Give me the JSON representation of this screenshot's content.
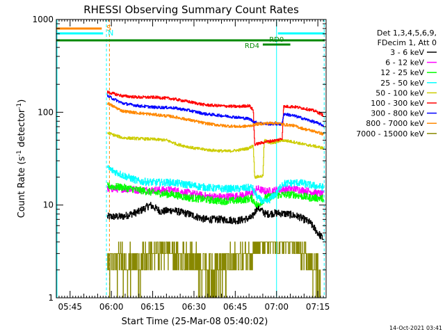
{
  "chart_data": {
    "type": "line",
    "title": "RHESSI Observing Summary Count Rates",
    "xlabel": "Start Time (25-Mar-08 05:40:02)",
    "ylabel_main": "Count Rate (s",
    "ylabel_sup1": "-1",
    "ylabel_mid": " detector",
    "ylabel_sup2": "-1",
    "ylabel_end": ")",
    "yscale": "log",
    "ylim": [
      1,
      1000
    ],
    "xlim_minutes": [
      0,
      98
    ],
    "x_ticks": [
      {
        "t": 5,
        "label": "05:45"
      },
      {
        "t": 20,
        "label": "06:00"
      },
      {
        "t": 35,
        "label": "06:15"
      },
      {
        "t": 50,
        "label": "06:30"
      },
      {
        "t": 65,
        "label": "06:45"
      },
      {
        "t": 80,
        "label": "07:00"
      },
      {
        "t": 95,
        "label": "07:15"
      }
    ],
    "y_ticks": [
      {
        "v": 1,
        "label": "1"
      },
      {
        "v": 10,
        "label": "10"
      },
      {
        "v": 100,
        "label": "100"
      },
      {
        "v": 1000,
        "label": "1000"
      }
    ],
    "legend_header": [
      "Det 1,3,4,5,6,9,",
      "FDecim 1, Att 0"
    ],
    "series": [
      {
        "name": "3 - 6 keV",
        "color": "#000000",
        "points": [
          [
            18.5,
            7.5
          ],
          [
            24,
            7.5
          ],
          [
            30,
            8.5
          ],
          [
            34,
            10
          ],
          [
            38,
            8.5
          ],
          [
            42,
            8.8
          ],
          [
            48,
            8
          ],
          [
            54,
            7
          ],
          [
            60,
            7
          ],
          [
            66,
            6.8
          ],
          [
            71,
            7.3
          ],
          [
            73,
            9.5
          ],
          [
            76,
            8
          ],
          [
            80,
            8.2
          ],
          [
            84,
            8
          ],
          [
            88,
            7.5
          ],
          [
            92,
            6.5
          ],
          [
            95,
            5
          ],
          [
            97,
            4.3
          ]
        ]
      },
      {
        "name": "6 - 12 keV",
        "color": "#ff00ff",
        "points": [
          [
            18.5,
            15
          ],
          [
            24,
            15
          ],
          [
            30,
            14.5
          ],
          [
            36,
            14.5
          ],
          [
            42,
            14.5
          ],
          [
            48,
            13.5
          ],
          [
            54,
            12.5
          ],
          [
            60,
            12.2
          ],
          [
            66,
            12.5
          ],
          [
            71,
            13.5
          ],
          [
            73,
            15
          ],
          [
            76,
            14
          ],
          [
            80,
            14.5
          ],
          [
            86,
            15
          ],
          [
            92,
            14
          ],
          [
            97,
            13
          ]
        ]
      },
      {
        "name": "12 - 25 keV",
        "color": "#00ff00",
        "points": [
          [
            18.5,
            16
          ],
          [
            24,
            15.5
          ],
          [
            30,
            14.5
          ],
          [
            36,
            13.5
          ],
          [
            42,
            13
          ],
          [
            48,
            12
          ],
          [
            54,
            11.5
          ],
          [
            60,
            11
          ],
          [
            66,
            11.2
          ],
          [
            71,
            11.8
          ],
          [
            73,
            9.8
          ],
          [
            76,
            12
          ],
          [
            80,
            12.8
          ],
          [
            86,
            13
          ],
          [
            92,
            12
          ],
          [
            97,
            11.8
          ]
        ]
      },
      {
        "name": "25 - 50 keV",
        "color": "#00ffff",
        "points": [
          [
            18.5,
            25
          ],
          [
            24,
            21
          ],
          [
            30,
            18
          ],
          [
            36,
            17.5
          ],
          [
            42,
            17.5
          ],
          [
            48,
            16.5
          ],
          [
            54,
            15.5
          ],
          [
            60,
            15
          ],
          [
            66,
            15
          ],
          [
            71,
            15.5
          ],
          [
            73,
            12
          ],
          [
            76,
            10.5
          ],
          [
            80,
            13.5
          ],
          [
            82,
            17
          ],
          [
            88,
            17.5
          ],
          [
            92,
            16.5
          ],
          [
            97,
            15.5
          ]
        ]
      },
      {
        "name": "50 - 100 keV",
        "color": "#cccc00",
        "points": [
          [
            18.5,
            60
          ],
          [
            24,
            53
          ],
          [
            30,
            52
          ],
          [
            36,
            51
          ],
          [
            40,
            50
          ],
          [
            44,
            45
          ],
          [
            50,
            41
          ],
          [
            56,
            39
          ],
          [
            62,
            38
          ],
          [
            66,
            39
          ],
          [
            70,
            41
          ],
          [
            71.5,
            44
          ],
          [
            72,
            20
          ],
          [
            75,
            20.5
          ],
          [
            75.5,
            50
          ],
          [
            78,
            46
          ],
          [
            82,
            50
          ],
          [
            86,
            48
          ],
          [
            90,
            45
          ],
          [
            94,
            43
          ],
          [
            97,
            41
          ]
        ]
      },
      {
        "name": "100 - 300 keV",
        "color": "#ff0000",
        "points": [
          [
            18.5,
            165
          ],
          [
            24,
            150
          ],
          [
            30,
            145
          ],
          [
            36,
            145
          ],
          [
            42,
            140
          ],
          [
            48,
            130
          ],
          [
            54,
            120
          ],
          [
            60,
            117
          ],
          [
            66,
            115
          ],
          [
            70,
            118
          ],
          [
            71.5,
            105
          ],
          [
            72,
            45
          ],
          [
            76,
            48
          ],
          [
            80,
            50
          ],
          [
            82,
            52
          ],
          [
            82.5,
            115
          ],
          [
            86,
            115
          ],
          [
            90,
            110
          ],
          [
            94,
            103
          ],
          [
            97,
            93
          ]
        ]
      },
      {
        "name": "300 - 800 keV",
        "color": "#0000ff",
        "points": [
          [
            18.5,
            150
          ],
          [
            24,
            125
          ],
          [
            30,
            117
          ],
          [
            36,
            113
          ],
          [
            42,
            112
          ],
          [
            48,
            105
          ],
          [
            54,
            96
          ],
          [
            60,
            92
          ],
          [
            66,
            88
          ],
          [
            70,
            85
          ],
          [
            72,
            78
          ],
          [
            76,
            75
          ],
          [
            80,
            75
          ],
          [
            82,
            74
          ],
          [
            82.5,
            96
          ],
          [
            86,
            92
          ],
          [
            90,
            85
          ],
          [
            94,
            78
          ],
          [
            97,
            72
          ]
        ]
      },
      {
        "name": "800 - 7000 keV",
        "color": "#ff8800",
        "points": [
          [
            18.5,
            125
          ],
          [
            24,
            103
          ],
          [
            30,
            98
          ],
          [
            36,
            94
          ],
          [
            42,
            90
          ],
          [
            48,
            83
          ],
          [
            54,
            76
          ],
          [
            60,
            72
          ],
          [
            66,
            70
          ],
          [
            70,
            71
          ],
          [
            72,
            74
          ],
          [
            76,
            76
          ],
          [
            80,
            77
          ],
          [
            82,
            74
          ],
          [
            86,
            72
          ],
          [
            90,
            66
          ],
          [
            94,
            62
          ],
          [
            97,
            58
          ]
        ]
      },
      {
        "name": "7000 - 15000 keV",
        "color": "#888800",
        "points": [
          [
            18.5,
            2.3
          ],
          [
            24,
            2.6
          ],
          [
            30,
            2.3
          ],
          [
            36,
            3.2
          ],
          [
            40,
            3.3
          ],
          [
            44,
            2.8
          ],
          [
            50,
            2.6
          ],
          [
            56,
            2.2
          ],
          [
            60,
            2.2
          ],
          [
            64,
            2.5
          ],
          [
            68,
            2.7
          ],
          [
            72,
            3.5
          ],
          [
            76,
            3.8
          ],
          [
            80,
            4
          ],
          [
            84,
            3.9
          ],
          [
            88,
            3.2
          ],
          [
            92,
            2.5
          ],
          [
            95,
            2
          ],
          [
            96,
            1.2
          ]
        ]
      }
    ],
    "annotations": [
      {
        "text": "S",
        "color": "#ff8800"
      },
      {
        "text": "N",
        "color": "#00ffff"
      },
      {
        "text": "RD0",
        "color": "#008800"
      },
      {
        "text": "RD4",
        "color": "#008800"
      }
    ],
    "footer_timestamp": "14-Oct-2021 03:41"
  }
}
